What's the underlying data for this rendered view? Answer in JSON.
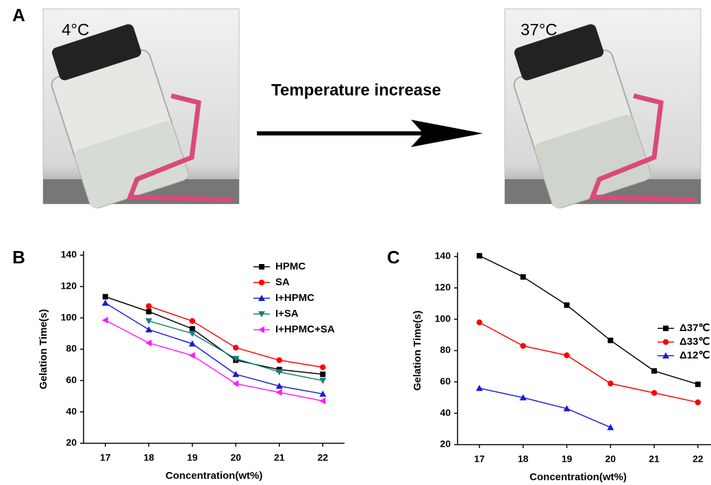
{
  "panel_a": {
    "label": "A",
    "temp_low": "4°C",
    "temp_high": "37°C",
    "arrow_text": "Temperature increase"
  },
  "chart_data": [
    {
      "type": "line",
      "panel_label": "B",
      "x_label": "Concentration(wt%)",
      "y_label": "Gelation Time(s)",
      "x": [
        17,
        18,
        19,
        20,
        21,
        22
      ],
      "xlim": [
        16.5,
        22.5
      ],
      "xticks": [
        17,
        18,
        19,
        20,
        21,
        22
      ],
      "ylim": [
        20,
        140
      ],
      "yticks": [
        20,
        40,
        60,
        80,
        100,
        120,
        140
      ],
      "legend": "upper right",
      "series": [
        {
          "name": "HPMC",
          "color": "#000000",
          "marker": "square",
          "values": [
            113.5,
            104,
            93,
            73,
            67,
            64
          ]
        },
        {
          "name": "SA",
          "color": "#ff0000",
          "marker": "circle",
          "values": [
            null,
            107.5,
            98,
            81,
            73,
            68.5
          ]
        },
        {
          "name": "I+HPMC",
          "color": "#1a1ad8",
          "marker": "triangle-up",
          "values": [
            109.5,
            92.5,
            83.5,
            64,
            56.5,
            51.5
          ]
        },
        {
          "name": "I+SA",
          "color": "#1a7f7f",
          "marker": "triangle-down",
          "values": [
            null,
            98,
            90,
            74,
            65.5,
            60
          ]
        },
        {
          "name": "I+HPMC+SA",
          "color": "#ff1aff",
          "marker": "triangle-left",
          "values": [
            98.5,
            84,
            76,
            58,
            52.5,
            47
          ]
        }
      ]
    },
    {
      "type": "line",
      "panel_label": "C",
      "x_label": "Concentration(wt%)",
      "y_label": "Gelation Time(s)",
      "x": [
        17,
        18,
        19,
        20,
        21,
        22
      ],
      "xlim": [
        16.5,
        22.3
      ],
      "xticks": [
        17,
        18,
        19,
        20,
        21,
        22
      ],
      "ylim": [
        20,
        140
      ],
      "yticks": [
        20,
        40,
        60,
        80,
        100,
        120,
        140
      ],
      "legend": "right",
      "series": [
        {
          "name": "Δ37℃",
          "color": "#000000",
          "marker": "square",
          "values": [
            140.5,
            127,
            109,
            86.5,
            67,
            58.5
          ]
        },
        {
          "name": "Δ33℃",
          "color": "#ff0000",
          "marker": "circle",
          "values": [
            98,
            83,
            77,
            59,
            53,
            47
          ]
        },
        {
          "name": "Δ12℃",
          "color": "#1a1ad8",
          "marker": "triangle-up",
          "values": [
            56,
            50,
            43,
            31,
            null,
            null
          ]
        }
      ]
    }
  ]
}
